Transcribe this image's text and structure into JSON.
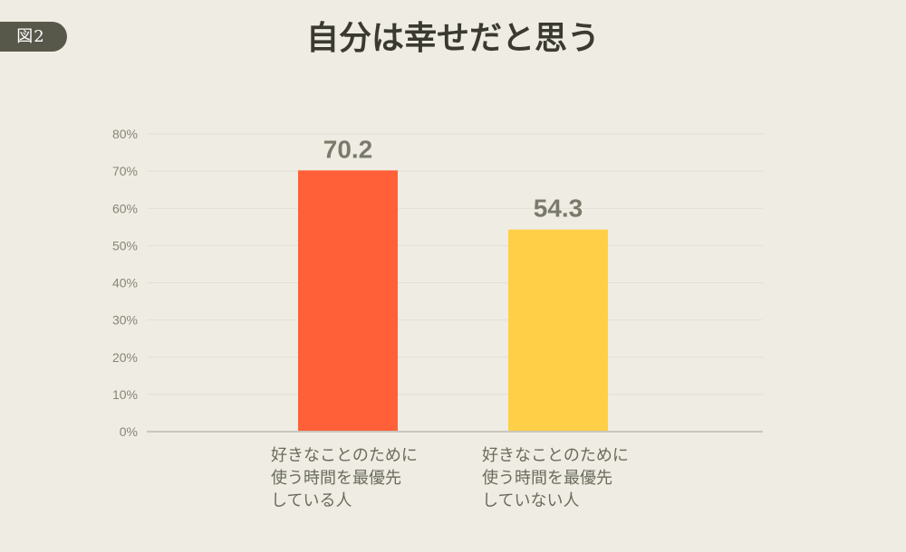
{
  "figure_label": "図2",
  "chart_data": {
    "type": "bar",
    "title": "自分は幸せだと思う",
    "categories": [
      "好きなことのために\n使う時間を最優先\nしている人",
      "好きなことのために\n使う時間を最優先\nしていない人"
    ],
    "values": [
      70.2,
      54.3
    ],
    "value_labels": [
      "70.2",
      "54.3"
    ],
    "colors": [
      "#ff6038",
      "#ffcf47"
    ],
    "y_ticks": [
      "0%",
      "10%",
      "20%",
      "30%",
      "40%",
      "50%",
      "60%",
      "70%",
      "80%"
    ],
    "ylim": [
      0,
      80
    ],
    "xlabel": "",
    "ylabel": "",
    "grid": true
  }
}
